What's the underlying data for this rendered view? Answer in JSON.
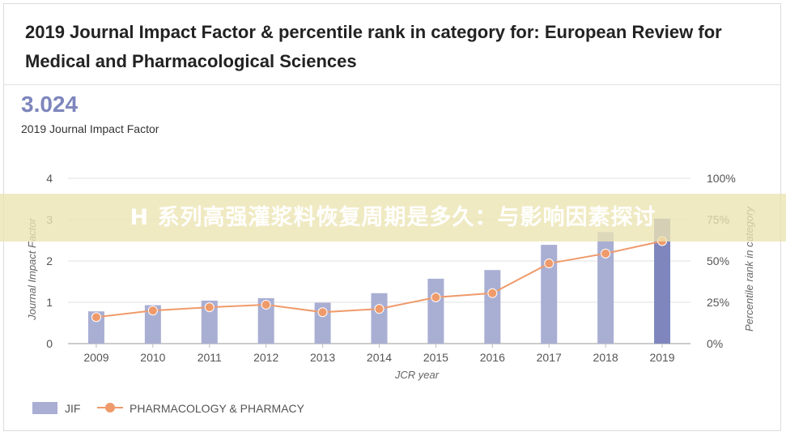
{
  "title": "2019 Journal Impact Factor & percentile rank in category for: European Review for Medical and Pharmacological Sciences",
  "jif_value": "3.024",
  "jif_label": "2019 Journal Impact Factor",
  "overlay_text": "H 系列高强灌浆料恢复周期是多久：与影响因素探讨",
  "colors": {
    "bar": "#a9aed3",
    "bar_highlight": "#7e86bd",
    "line": "#ef9a6a",
    "title": "#222222",
    "jif_value": "#7e86bd"
  },
  "chart_data": {
    "type": "bar",
    "categories": [
      "2009",
      "2010",
      "2011",
      "2012",
      "2013",
      "2014",
      "2015",
      "2016",
      "2017",
      "2018",
      "2019"
    ],
    "series": [
      {
        "name": "JIF",
        "type": "bar",
        "axis": "left",
        "values": [
          0.78,
          0.93,
          1.04,
          1.1,
          0.99,
          1.22,
          1.57,
          1.78,
          2.39,
          2.7,
          3.024
        ]
      },
      {
        "name": "PHARMACOLOGY & PHARMACY",
        "type": "line",
        "axis": "right",
        "values": [
          16,
          20,
          22,
          23.5,
          19,
          21,
          28,
          30.5,
          48.5,
          54.5,
          62
        ]
      }
    ],
    "xlabel": "JCR year",
    "ylabel_left": "Journal Impact Factor",
    "ylabel_right": "Percentile rank in category",
    "ylim_left": [
      0,
      4
    ],
    "ylim_right": [
      0,
      100
    ],
    "yticks_left": [
      "0",
      "1",
      "2",
      "3",
      "4"
    ],
    "yticks_right": [
      "0%",
      "25%",
      "50%",
      "75%",
      "100%"
    ],
    "grid": true,
    "legend_position": "bottom-left"
  }
}
